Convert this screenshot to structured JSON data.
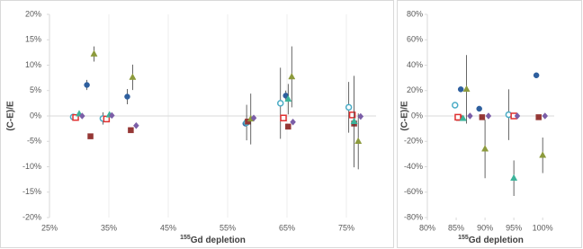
{
  "chart_data": [
    {
      "type": "scatter",
      "ylabel": "(C-E)/E",
      "xlabel_sup": "155",
      "xlabel": "Gd depletion",
      "xlim": [
        25,
        80
      ],
      "ylim": [
        -20,
        20
      ],
      "xgrid": true,
      "xticks": [
        {
          "value": 25,
          "label": "25%"
        },
        {
          "value": 35,
          "label": "35%"
        },
        {
          "value": 45,
          "label": "45%"
        },
        {
          "value": 55,
          "label": "55%"
        },
        {
          "value": 65,
          "label": "65%"
        },
        {
          "value": 75,
          "label": "75%"
        }
      ],
      "yticks": [
        {
          "value": 20,
          "label": "20%"
        },
        {
          "value": 15,
          "label": "15%"
        },
        {
          "value": 10,
          "label": "10%"
        },
        {
          "value": 5,
          "label": "5%"
        },
        {
          "value": 0,
          "label": "0%"
        },
        {
          "value": -5,
          "label": "-5%"
        },
        {
          "value": -10,
          "label": "-10%"
        },
        {
          "value": -15,
          "label": "-15%"
        },
        {
          "value": -20,
          "label": "-20%"
        }
      ],
      "series": [
        {
          "marker": "circle",
          "filled": true,
          "color": "#2e5f9e",
          "x": [
            31.3,
            38.1,
            58,
            64.8
          ],
          "values": [
            6.1,
            3.8,
            -1.5,
            4
          ],
          "errors": [
            1,
            1.5,
            null,
            1
          ]
        },
        {
          "marker": "circle",
          "filled": false,
          "color": "#4bacc6",
          "x": [
            29,
            34,
            58.2,
            63.9,
            75.4
          ],
          "values": [
            -0.2,
            -0.5,
            -1.3,
            2.5,
            1.7
          ],
          "errors": [
            null,
            1.2,
            3.5,
            7,
            5
          ]
        },
        {
          "marker": "square",
          "filled": true,
          "color": "#953735",
          "x": [
            31.9,
            38.7,
            58.4,
            65.2,
            76.3
          ],
          "values": [
            -4,
            -2.8,
            -1.1,
            -2.1,
            -1.5
          ]
        },
        {
          "marker": "square",
          "filled": false,
          "color": "#e03030",
          "x": [
            29.4,
            34.6,
            64.4,
            76
          ],
          "values": [
            -0.3,
            -0.6,
            -0.4,
            0.2
          ]
        },
        {
          "marker": "triangle",
          "filled": true,
          "color": "#8c9a3c",
          "x": [
            32.5,
            39,
            58.9,
            65.8,
            77
          ],
          "values": [
            12.2,
            7.6,
            -0.6,
            7.7,
            -5
          ],
          "errors": [
            1.5,
            2.5,
            5,
            6,
            5.5
          ]
        },
        {
          "marker": "triangle",
          "filled": true,
          "color": "#3cb39a",
          "x": [
            30,
            35.1,
            65.2,
            76.3
          ],
          "values": [
            0.4,
            0.2,
            3.3,
            -1.1
          ],
          "errors": [
            null,
            null,
            3,
            9
          ]
        },
        {
          "marker": "diamond",
          "filled": true,
          "color": "#7b5ea7",
          "x": [
            30.5,
            35.5,
            39.6,
            59.4,
            66,
            77.4
          ],
          "values": [
            0,
            0.1,
            -1.9,
            -0.4,
            -1.2,
            -0.1
          ]
        }
      ]
    },
    {
      "type": "scatter",
      "ylabel": "(C-E)/E",
      "xlabel_sup": "155",
      "xlabel": "Gd depletion",
      "xlim": [
        80,
        102
      ],
      "ylim": [
        -80,
        80
      ],
      "xgrid": false,
      "xticks": [
        {
          "value": 80,
          "label": "80%"
        },
        {
          "value": 85,
          "label": "85%"
        },
        {
          "value": 90,
          "label": "90%"
        },
        {
          "value": 95,
          "label": "95%"
        },
        {
          "value": 100,
          "label": "100%"
        }
      ],
      "yticks": [
        {
          "value": 80,
          "label": "80%"
        },
        {
          "value": 60,
          "label": "60%"
        },
        {
          "value": 40,
          "label": "40%"
        },
        {
          "value": 20,
          "label": "20%"
        },
        {
          "value": 0,
          "label": "0%"
        },
        {
          "value": -20,
          "label": "-20%"
        },
        {
          "value": -40,
          "label": "-40%"
        },
        {
          "value": -60,
          "label": "-60%"
        },
        {
          "value": -80,
          "label": "-80%"
        }
      ],
      "series": [
        {
          "marker": "circle",
          "filled": true,
          "color": "#2e5f9e",
          "x": [
            85.8,
            89,
            98.9
          ],
          "values": [
            21,
            5.7,
            32
          ]
        },
        {
          "marker": "circle",
          "filled": false,
          "color": "#4bacc6",
          "x": [
            84.8,
            94.1
          ],
          "values": [
            8.5,
            1
          ],
          "errors": [
            null,
            20
          ]
        },
        {
          "marker": "square",
          "filled": true,
          "color": "#953735",
          "x": [
            85.5,
            89.5,
            99.3
          ],
          "values": [
            -1.5,
            -1,
            -1
          ]
        },
        {
          "marker": "square",
          "filled": false,
          "color": "#e03030",
          "x": [
            85.3,
            95
          ],
          "values": [
            -1,
            0
          ]
        },
        {
          "marker": "triangle",
          "filled": true,
          "color": "#8c9a3c",
          "x": [
            86.8,
            90,
            100
          ],
          "values": [
            21,
            -26,
            -31
          ],
          "errors": [
            27,
            23,
            14
          ]
        },
        {
          "marker": "triangle",
          "filled": true,
          "color": "#3cb39a",
          "x": [
            86.2,
            95
          ],
          "values": [
            -2,
            -49
          ],
          "errors": [
            null,
            14
          ]
        },
        {
          "marker": "diamond",
          "filled": true,
          "color": "#7b5ea7",
          "x": [
            87.4,
            90.6,
            95.6,
            100.4
          ],
          "values": [
            0,
            0,
            0,
            0
          ]
        }
      ]
    }
  ]
}
